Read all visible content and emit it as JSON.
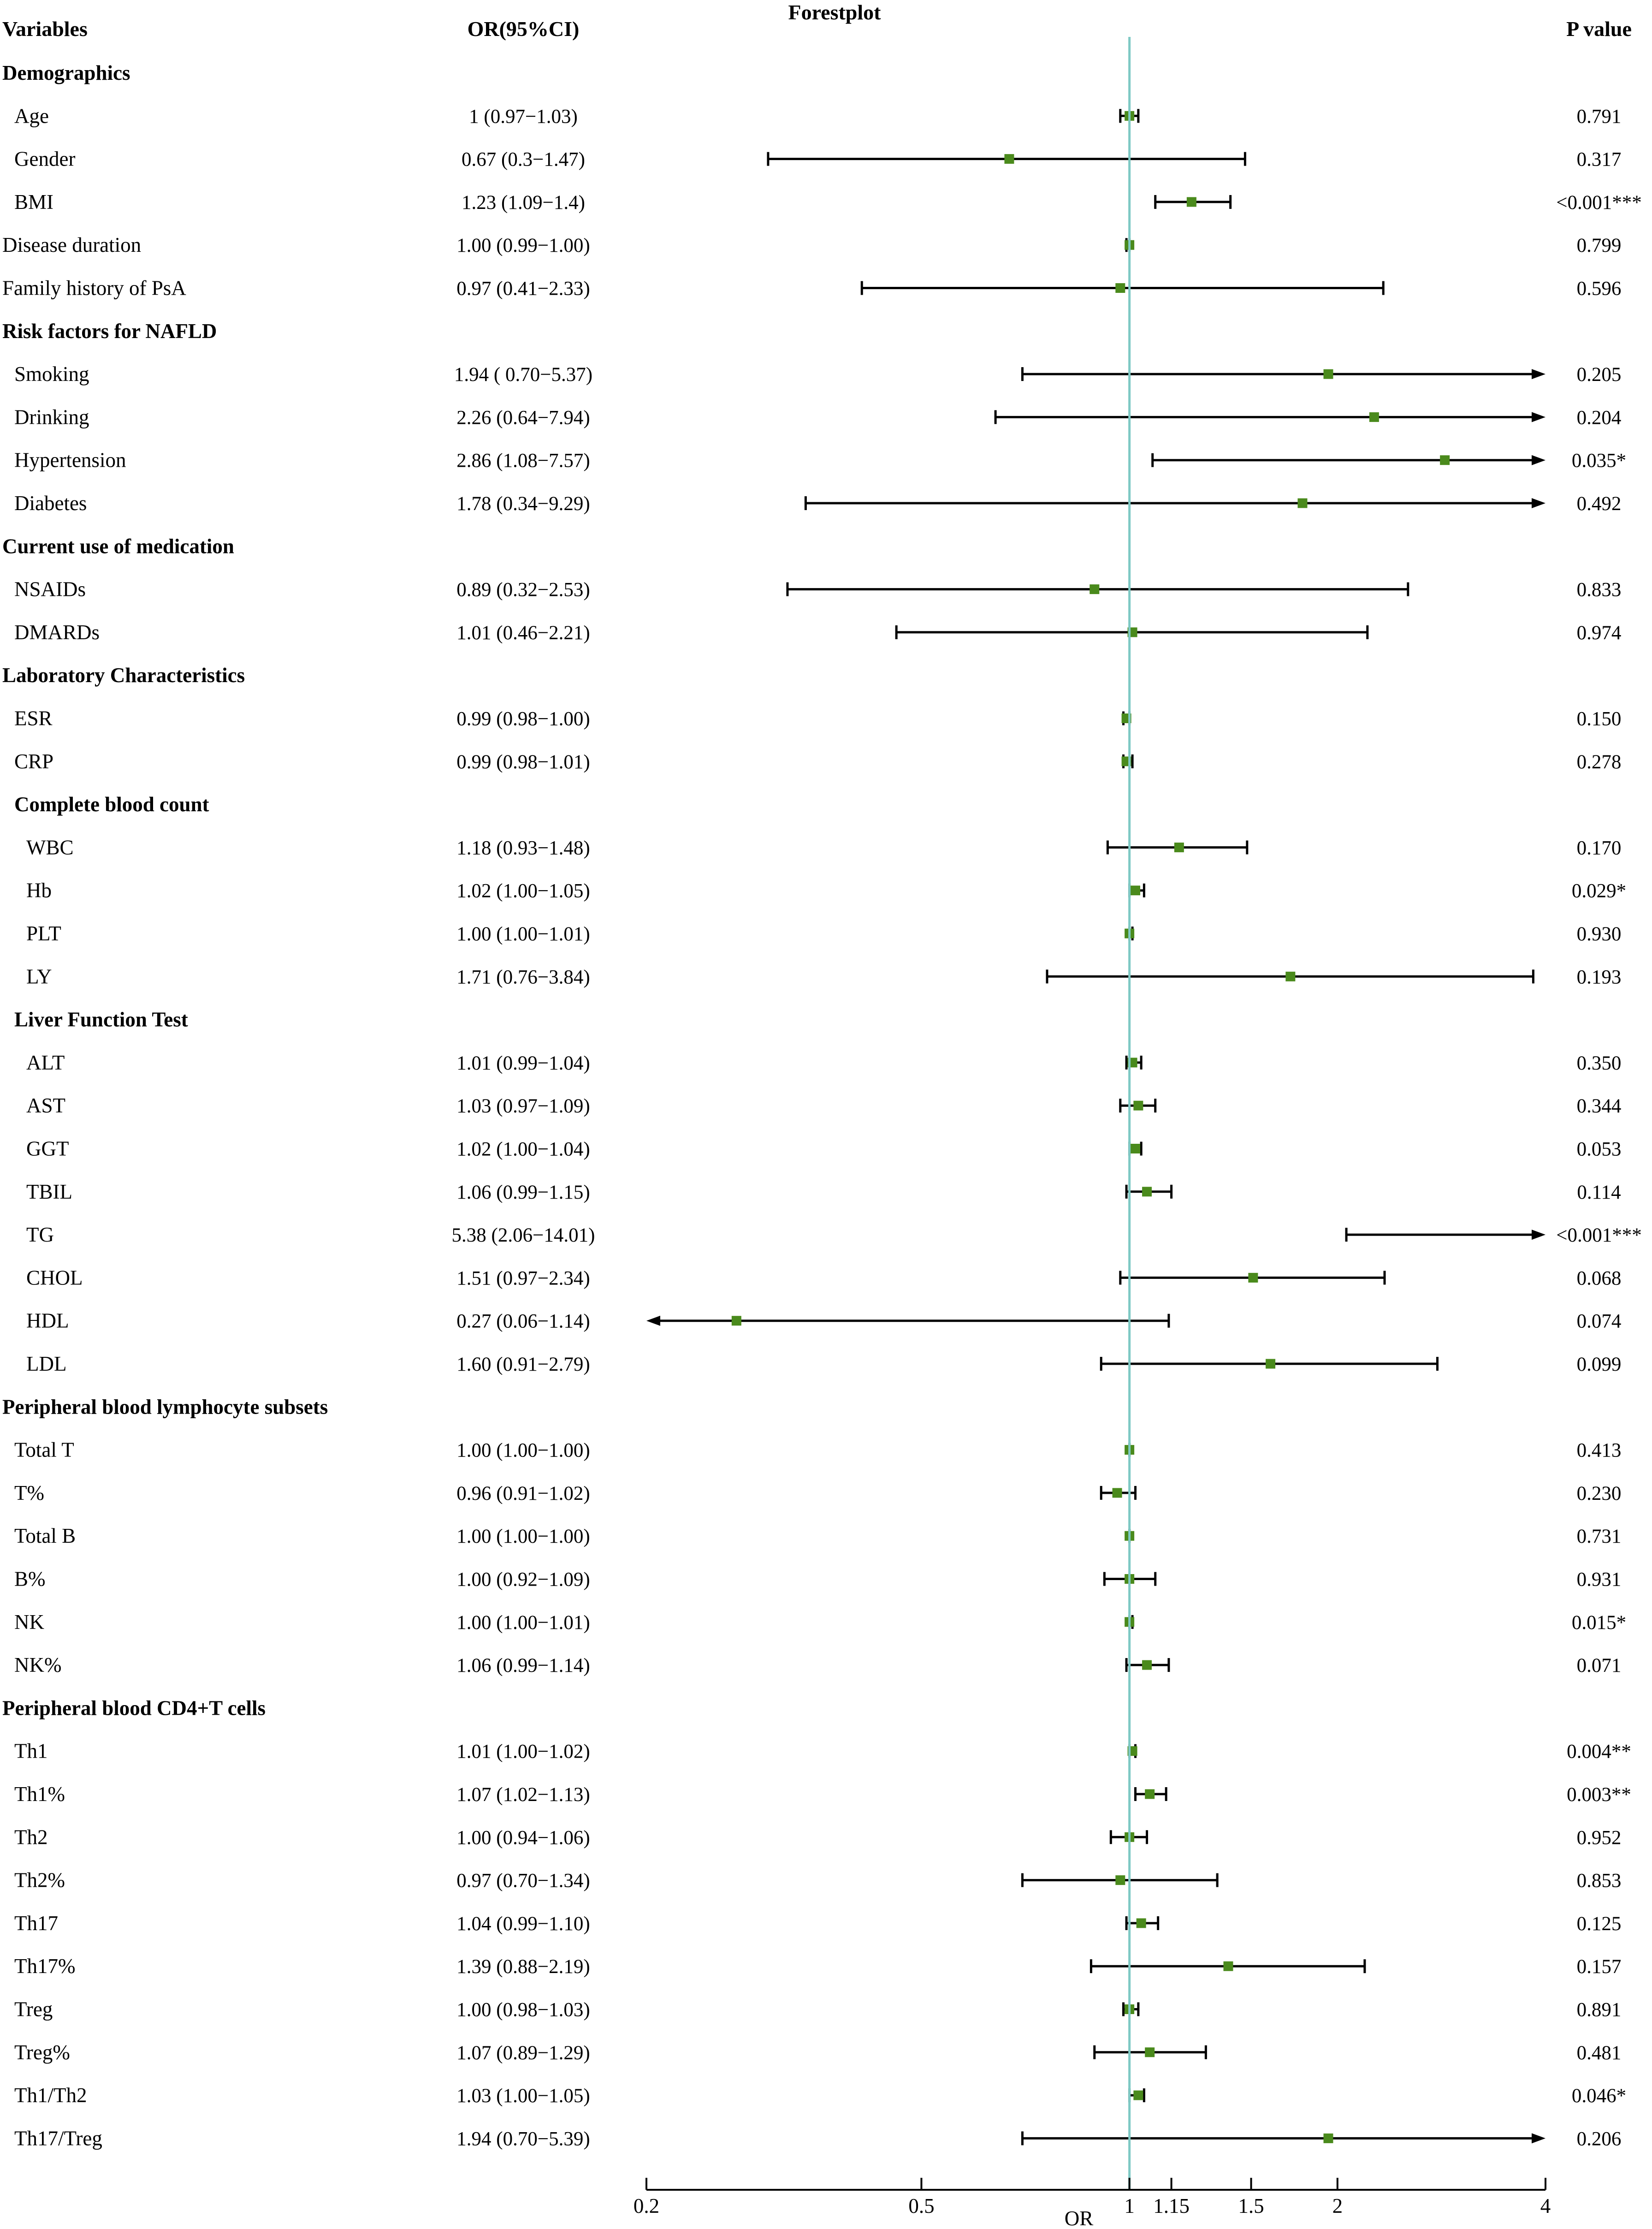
{
  "chart_data": {
    "type": "forest",
    "title": "Forestplot",
    "xlabel": "OR",
    "column_headers": {
      "variables": "Variables",
      "or_ci": "OR(95%CI)",
      "p_value": "P value"
    },
    "reference_line": 1,
    "xlim": [
      0.2,
      4
    ],
    "x_ticks": [
      {
        "value": 0.2,
        "label": "0.2"
      },
      {
        "value": 0.5,
        "label": "0.5"
      },
      {
        "value": 1,
        "label": "1"
      },
      {
        "value": 1.15,
        "label": "1.15"
      },
      {
        "value": 1.5,
        "label": "1.5"
      },
      {
        "value": 2,
        "label": "2"
      },
      {
        "value": 4,
        "label": "4"
      }
    ],
    "colors": {
      "marker": "#4a8a1c",
      "reference_line": "#7ec9c4",
      "lines": "#000000"
    },
    "rows": [
      {
        "label": "Demographics",
        "group": true,
        "level": 0
      },
      {
        "label": "Age",
        "level": 1,
        "or": 1,
        "lo": 0.97,
        "hi": 1.03,
        "or_text": "1 (0.97−1.03)",
        "p": "0.791"
      },
      {
        "label": "Gender",
        "level": 1,
        "or": 0.67,
        "lo": 0.3,
        "hi": 1.47,
        "or_text": "0.67 (0.3−1.47)",
        "p": "0.317"
      },
      {
        "label": "BMI",
        "level": 1,
        "or": 1.23,
        "lo": 1.09,
        "hi": 1.4,
        "or_text": "1.23 (1.09−1.4)",
        "p": "<0.001***"
      },
      {
        "label": "Disease duration",
        "level": 0,
        "or": 1.0,
        "lo": 0.99,
        "hi": 1.0,
        "or_text": "1.00 (0.99−1.00)",
        "p": "0.799"
      },
      {
        "label": "Family history of PsA",
        "level": 0,
        "or": 0.97,
        "lo": 0.41,
        "hi": 2.33,
        "or_text": "0.97 (0.41−2.33)",
        "p": "0.596"
      },
      {
        "label": "Risk factors for NAFLD",
        "group": true,
        "level": 0
      },
      {
        "label": "Smoking",
        "level": 1,
        "or": 1.94,
        "lo": 0.7,
        "hi": 5.37,
        "or_text": "1.94 ( 0.70−5.37)",
        "p": "0.205"
      },
      {
        "label": "Drinking",
        "level": 1,
        "or": 2.26,
        "lo": 0.64,
        "hi": 7.94,
        "or_text": "2.26 (0.64−7.94)",
        "p": "0.204"
      },
      {
        "label": "Hypertension",
        "level": 1,
        "or": 2.86,
        "lo": 1.08,
        "hi": 7.57,
        "or_text": "2.86 (1.08−7.57)",
        "p": "0.035*"
      },
      {
        "label": "Diabetes",
        "level": 1,
        "or": 1.78,
        "lo": 0.34,
        "hi": 9.29,
        "or_text": "1.78 (0.34−9.29)",
        "p": "0.492"
      },
      {
        "label": "Current use of medication",
        "group": true,
        "level": 0
      },
      {
        "label": "NSAIDs",
        "level": 1,
        "or": 0.89,
        "lo": 0.32,
        "hi": 2.53,
        "or_text": "0.89 (0.32−2.53)",
        "p": "0.833"
      },
      {
        "label": "DMARDs",
        "level": 1,
        "or": 1.01,
        "lo": 0.46,
        "hi": 2.21,
        "or_text": "1.01 (0.46−2.21)",
        "p": "0.974"
      },
      {
        "label": "Laboratory Characteristics",
        "group": true,
        "level": 0
      },
      {
        "label": "ESR",
        "level": 1,
        "or": 0.99,
        "lo": 0.98,
        "hi": 1.0,
        "or_text": "0.99 (0.98−1.00)",
        "p": "0.150"
      },
      {
        "label": "CRP",
        "level": 1,
        "or": 0.99,
        "lo": 0.98,
        "hi": 1.01,
        "or_text": "0.99 (0.98−1.01)",
        "p": "0.278"
      },
      {
        "label": "Complete blood count",
        "group": true,
        "level": 1
      },
      {
        "label": "WBC",
        "level": 2,
        "or": 1.18,
        "lo": 0.93,
        "hi": 1.48,
        "or_text": "1.18 (0.93−1.48)",
        "p": "0.170"
      },
      {
        "label": "Hb",
        "level": 2,
        "or": 1.02,
        "lo": 1.0,
        "hi": 1.05,
        "or_text": "1.02 (1.00−1.05)",
        "p": "0.029*"
      },
      {
        "label": "PLT",
        "level": 2,
        "or": 1.0,
        "lo": 1.0,
        "hi": 1.01,
        "or_text": "1.00 (1.00−1.01)",
        "p": "0.930"
      },
      {
        "label": "LY",
        "level": 2,
        "or": 1.71,
        "lo": 0.76,
        "hi": 3.84,
        "or_text": "1.71 (0.76−3.84)",
        "p": "0.193"
      },
      {
        "label": "Liver Function Test",
        "group": true,
        "level": 1
      },
      {
        "label": "ALT",
        "level": 2,
        "or": 1.01,
        "lo": 0.99,
        "hi": 1.04,
        "or_text": "1.01 (0.99−1.04)",
        "p": "0.350"
      },
      {
        "label": "AST",
        "level": 2,
        "or": 1.03,
        "lo": 0.97,
        "hi": 1.09,
        "or_text": "1.03 (0.97−1.09)",
        "p": "0.344"
      },
      {
        "label": "GGT",
        "level": 2,
        "or": 1.02,
        "lo": 1.0,
        "hi": 1.04,
        "or_text": "1.02 (1.00−1.04)",
        "p": "0.053"
      },
      {
        "label": "TBIL",
        "level": 2,
        "or": 1.06,
        "lo": 0.99,
        "hi": 1.15,
        "or_text": "1.06 (0.99−1.15)",
        "p": "0.114"
      },
      {
        "label": "TG",
        "level": 2,
        "or": 5.38,
        "lo": 2.06,
        "hi": 14.01,
        "or_text": "5.38 (2.06−14.01)",
        "p": "<0.001***"
      },
      {
        "label": "CHOL",
        "level": 2,
        "or": 1.51,
        "lo": 0.97,
        "hi": 2.34,
        "or_text": "1.51 (0.97−2.34)",
        "p": "0.068"
      },
      {
        "label": "HDL",
        "level": 2,
        "or": 0.27,
        "lo": 0.06,
        "hi": 1.14,
        "or_text": "0.27 (0.06−1.14)",
        "p": "0.074"
      },
      {
        "label": "LDL",
        "level": 2,
        "or": 1.6,
        "lo": 0.91,
        "hi": 2.79,
        "or_text": "1.60 (0.91−2.79)",
        "p": "0.099"
      },
      {
        "label": "Peripheral blood lymphocyte subsets",
        "group": true,
        "level": 0
      },
      {
        "label": "Total T",
        "level": 1,
        "or": 1.0,
        "lo": 1.0,
        "hi": 1.0,
        "or_text": "1.00 (1.00−1.00)",
        "p": "0.413"
      },
      {
        "label": "T%",
        "level": 1,
        "or": 0.96,
        "lo": 0.91,
        "hi": 1.02,
        "or_text": "0.96 (0.91−1.02)",
        "p": "0.230"
      },
      {
        "label": "Total B",
        "level": 1,
        "or": 1.0,
        "lo": 1.0,
        "hi": 1.0,
        "or_text": "1.00 (1.00−1.00)",
        "p": "0.731"
      },
      {
        "label": "B%",
        "level": 1,
        "or": 1.0,
        "lo": 0.92,
        "hi": 1.09,
        "or_text": "1.00 (0.92−1.09)",
        "p": "0.931"
      },
      {
        "label": "NK",
        "level": 1,
        "or": 1.0,
        "lo": 1.0,
        "hi": 1.01,
        "or_text": "1.00 (1.00−1.01)",
        "p": "0.015*"
      },
      {
        "label": "NK%",
        "level": 1,
        "or": 1.06,
        "lo": 0.99,
        "hi": 1.14,
        "or_text": "1.06 (0.99−1.14)",
        "p": "0.071"
      },
      {
        "label": "Peripheral blood CD4+T cells",
        "group": true,
        "level": 0
      },
      {
        "label": "Th1",
        "level": 1,
        "or": 1.01,
        "lo": 1.0,
        "hi": 1.02,
        "or_text": "1.01 (1.00−1.02)",
        "p": "0.004**"
      },
      {
        "label": "Th1%",
        "level": 1,
        "or": 1.07,
        "lo": 1.02,
        "hi": 1.13,
        "or_text": "1.07 (1.02−1.13)",
        "p": "0.003**"
      },
      {
        "label": "Th2",
        "level": 1,
        "or": 1.0,
        "lo": 0.94,
        "hi": 1.06,
        "or_text": "1.00 (0.94−1.06)",
        "p": "0.952"
      },
      {
        "label": "Th2%",
        "level": 1,
        "or": 0.97,
        "lo": 0.7,
        "hi": 1.34,
        "or_text": "0.97 (0.70−1.34)",
        "p": "0.853"
      },
      {
        "label": "Th17",
        "level": 1,
        "or": 1.04,
        "lo": 0.99,
        "hi": 1.1,
        "or_text": "1.04 (0.99−1.10)",
        "p": "0.125"
      },
      {
        "label": "Th17%",
        "level": 1,
        "or": 1.39,
        "lo": 0.88,
        "hi": 2.19,
        "or_text": "1.39 (0.88−2.19)",
        "p": "0.157"
      },
      {
        "label": "Treg",
        "level": 1,
        "or": 1.0,
        "lo": 0.98,
        "hi": 1.03,
        "or_text": "1.00 (0.98−1.03)",
        "p": "0.891"
      },
      {
        "label": "Treg%",
        "level": 1,
        "or": 1.07,
        "lo": 0.89,
        "hi": 1.29,
        "or_text": "1.07 (0.89−1.29)",
        "p": "0.481"
      },
      {
        "label": "Th1/Th2",
        "level": 1,
        "or": 1.03,
        "lo": 1.0,
        "hi": 1.05,
        "or_text": "1.03 (1.00−1.05)",
        "p": "0.046*"
      },
      {
        "label": "Th17/Treg",
        "level": 1,
        "or": 1.94,
        "lo": 0.7,
        "hi": 5.39,
        "or_text": "1.94 (0.70−5.39)",
        "p": "0.206"
      }
    ]
  }
}
